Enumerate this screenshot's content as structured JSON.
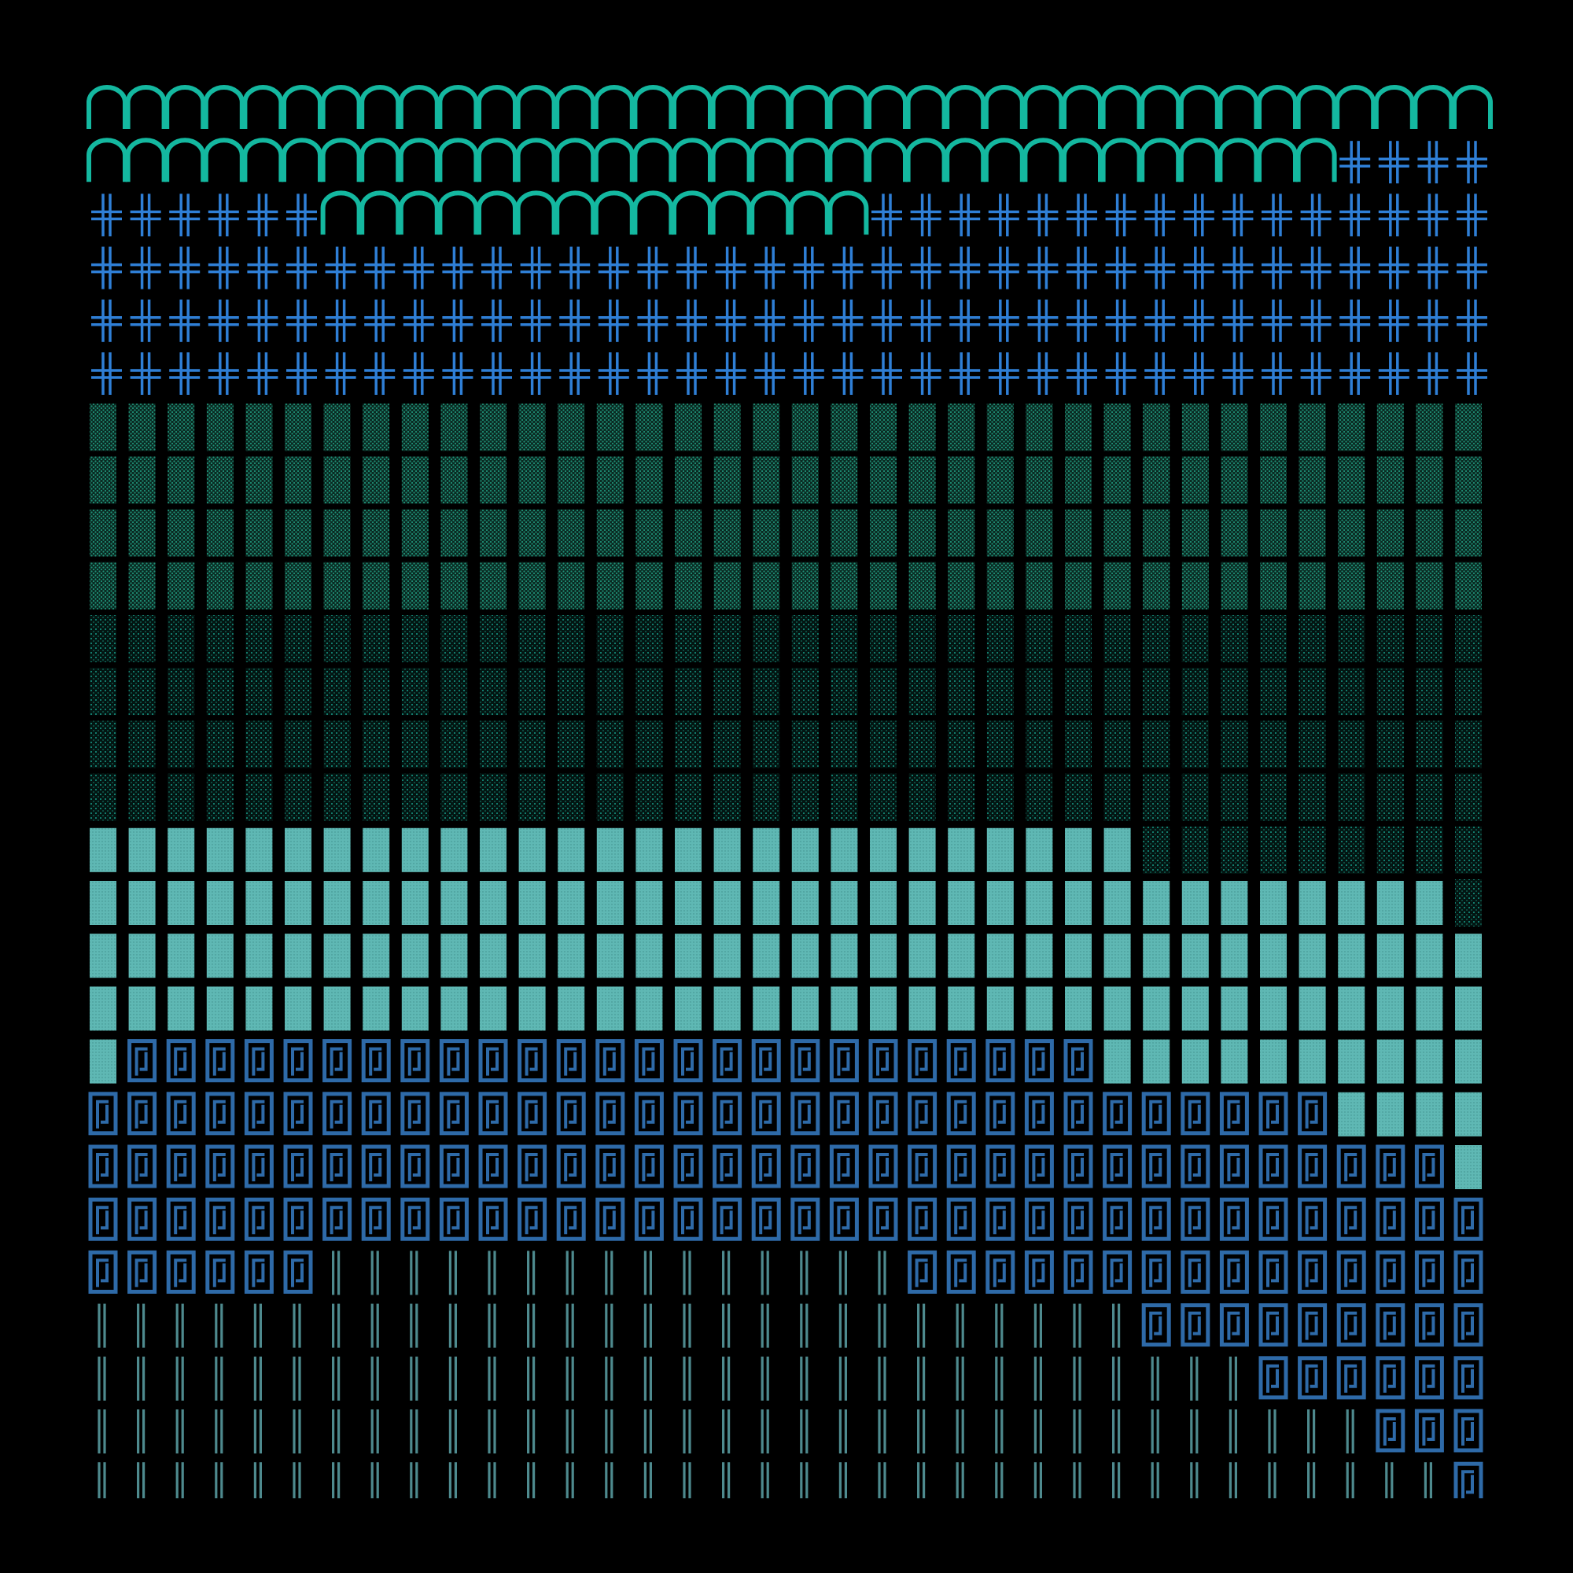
{
  "canvas": {
    "background": "#000000"
  },
  "palette": {
    "arch": "#14b8a0",
    "cross": "#2f7fd6",
    "stipple_dense": "#1f8f76",
    "stipple_sparse": "#189c88",
    "block": "#5fb8b4",
    "frame": "#2e6aa8",
    "bars": "#4e8a8e"
  },
  "grid": {
    "columns": 36,
    "rows": 27
  },
  "glyphs": [
    "arch-icon",
    "cross-icon",
    "stipple-dense-pattern",
    "stipple-sparse-pattern",
    "dotted-block-pattern",
    "frame-icon",
    "double-bar-icon"
  ],
  "rows": [
    {
      "segments": [
        {
          "glyph": "arch-icon",
          "count": 36
        }
      ]
    },
    {
      "segments": [
        {
          "glyph": "arch-icon",
          "count": 32
        },
        {
          "glyph": "cross-icon",
          "count": 4
        }
      ]
    },
    {
      "segments": [
        {
          "glyph": "cross-icon",
          "count": 6
        },
        {
          "glyph": "arch-icon",
          "count": 14
        },
        {
          "glyph": "cross-icon",
          "count": 16
        }
      ]
    },
    {
      "segments": [
        {
          "glyph": "cross-icon",
          "count": 36
        }
      ]
    },
    {
      "segments": [
        {
          "glyph": "cross-icon",
          "count": 36
        }
      ]
    },
    {
      "segments": [
        {
          "glyph": "cross-icon",
          "count": 36
        }
      ]
    },
    {
      "segments": [
        {
          "glyph": "stipple-dense-pattern",
          "count": 36
        }
      ]
    },
    {
      "segments": [
        {
          "glyph": "stipple-dense-pattern",
          "count": 36
        }
      ]
    },
    {
      "segments": [
        {
          "glyph": "stipple-dense-pattern",
          "count": 36
        }
      ]
    },
    {
      "segments": [
        {
          "glyph": "stipple-dense-pattern",
          "count": 36
        }
      ]
    },
    {
      "segments": [
        {
          "glyph": "stipple-sparse-pattern",
          "count": 36
        }
      ]
    },
    {
      "segments": [
        {
          "glyph": "stipple-sparse-pattern",
          "count": 36
        }
      ]
    },
    {
      "segments": [
        {
          "glyph": "stipple-sparse-pattern",
          "count": 36
        }
      ]
    },
    {
      "segments": [
        {
          "glyph": "stipple-sparse-pattern",
          "count": 36
        }
      ]
    },
    {
      "segments": [
        {
          "glyph": "dotted-block-pattern",
          "count": 27
        },
        {
          "glyph": "stipple-sparse-pattern",
          "count": 9
        }
      ]
    },
    {
      "segments": [
        {
          "glyph": "dotted-block-pattern",
          "count": 35
        },
        {
          "glyph": "stipple-sparse-pattern",
          "count": 1
        }
      ]
    },
    {
      "segments": [
        {
          "glyph": "dotted-block-pattern",
          "count": 36
        }
      ]
    },
    {
      "segments": [
        {
          "glyph": "dotted-block-pattern",
          "count": 36
        }
      ]
    },
    {
      "segments": [
        {
          "glyph": "dotted-block-pattern",
          "count": 1
        },
        {
          "glyph": "frame-icon",
          "count": 25
        },
        {
          "glyph": "dotted-block-pattern",
          "count": 10
        }
      ]
    },
    {
      "segments": [
        {
          "glyph": "frame-icon",
          "count": 32
        },
        {
          "glyph": "dotted-block-pattern",
          "count": 4
        }
      ]
    },
    {
      "segments": [
        {
          "glyph": "frame-icon",
          "count": 35
        },
        {
          "glyph": "dotted-block-pattern",
          "count": 1
        }
      ]
    },
    {
      "segments": [
        {
          "glyph": "frame-icon",
          "count": 36
        }
      ]
    },
    {
      "segments": [
        {
          "glyph": "frame-icon",
          "count": 6
        },
        {
          "glyph": "double-bar-icon",
          "count": 15
        },
        {
          "glyph": "frame-icon",
          "count": 15
        }
      ]
    },
    {
      "segments": [
        {
          "glyph": "double-bar-icon",
          "count": 27
        },
        {
          "glyph": "frame-icon",
          "count": 9
        }
      ]
    },
    {
      "segments": [
        {
          "glyph": "double-bar-icon",
          "count": 30
        },
        {
          "glyph": "frame-icon",
          "count": 6
        }
      ]
    },
    {
      "segments": [
        {
          "glyph": "double-bar-icon",
          "count": 33
        },
        {
          "glyph": "frame-icon",
          "count": 3
        }
      ]
    },
    {
      "segments": [
        {
          "glyph": "double-bar-icon",
          "count": 35
        },
        {
          "glyph": "frame-icon",
          "count": 1
        }
      ]
    }
  ]
}
